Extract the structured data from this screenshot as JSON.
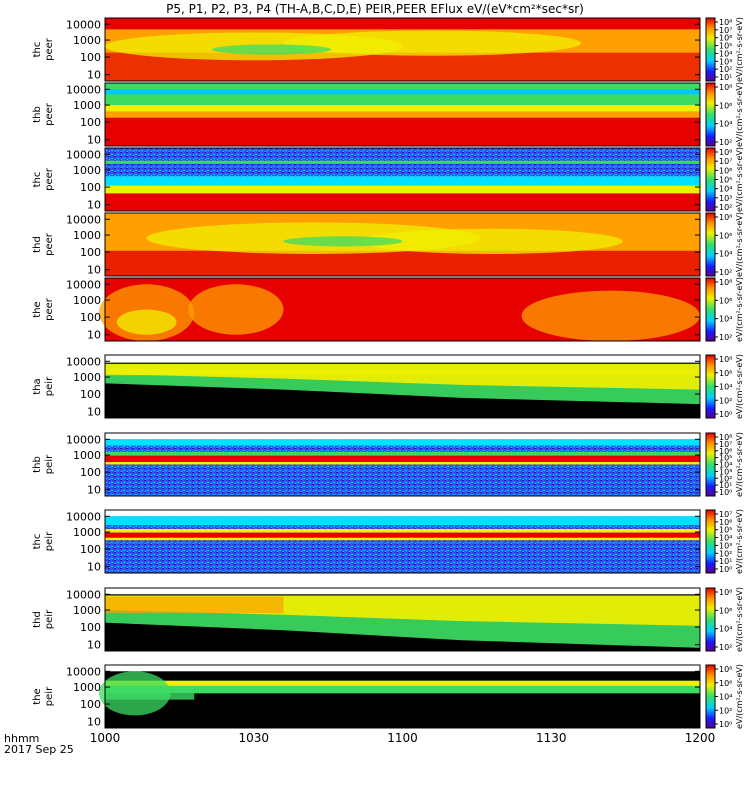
{
  "chart_data": {
    "type": "heatmap",
    "title": "P5, P1, P2, P3, P4 (TH-A,B,C,D,E) PEIR,PEER EFlux eV/(eV*cm²*sec*sr)",
    "x_ticks": [
      "1000",
      "1030",
      "1100",
      "1130",
      "1200"
    ],
    "x_range": [
      "2017-09-25 10:00",
      "2017-09-25 12:00"
    ],
    "x_corner_labels": [
      "hhmm",
      "2017 Sep 25"
    ],
    "y_scale": "log",
    "y_ticks": [
      "10000",
      "1000",
      "100",
      "10"
    ],
    "colorbar_scale": "log",
    "colorbar_label": "eV/(cm²-s-sr-eV)",
    "colors": {
      "black": "#000000",
      "navy": "#1a1aa0",
      "blue": "#2a4cff",
      "cyan": "#00e0ff",
      "green": "#3cdc64",
      "yellow": "#f0f000",
      "orange": "#ffa000",
      "red": "#e60000",
      "background": "#ffffff"
    },
    "panels": [
      {
        "ylabel": [
          "thc",
          "peer"
        ],
        "cb_ticks": [
          "10⁸",
          "10⁷",
          "10⁶",
          "10⁵",
          "10⁴",
          "10³",
          "10²",
          "10¹"
        ],
        "dominant": "orange-red"
      },
      {
        "ylabel": [
          "thb",
          "peer"
        ],
        "cb_ticks": [
          "10⁸",
          "10⁶",
          "10⁴",
          "10²"
        ],
        "dominant": "red below 100 eV, green above"
      },
      {
        "ylabel": [
          "thc",
          "peer"
        ],
        "cb_ticks": [
          "10⁸",
          "10⁷",
          "10⁶",
          "10⁵",
          "10⁴",
          "10³",
          "10²"
        ],
        "dominant": "red below 100 eV, blue above"
      },
      {
        "ylabel": [
          "thd",
          "peer"
        ],
        "cb_ticks": [
          "10⁸",
          "10⁶",
          "10⁴",
          "10²"
        ],
        "dominant": "orange-red"
      },
      {
        "ylabel": [
          "the",
          "peer"
        ],
        "cb_ticks": [
          "10⁸",
          "10⁶",
          "10⁴",
          "10²"
        ],
        "dominant": "red"
      },
      {
        "ylabel": [
          "tha",
          "peir"
        ],
        "cb_ticks": [
          "10⁸",
          "10⁶",
          "10⁴",
          "10²",
          "10⁰"
        ],
        "dominant": "green-yellow above black"
      },
      {
        "ylabel": [
          "thb",
          "peir"
        ],
        "cb_ticks": [
          "10⁸",
          "10⁷",
          "10⁶",
          "10⁵",
          "10⁴",
          "10³",
          "10²",
          "10¹",
          "10⁰"
        ],
        "dominant": "blue with red band near 1000 eV"
      },
      {
        "ylabel": [
          "thc",
          "peir"
        ],
        "cb_ticks": [
          "10⁷",
          "10⁶",
          "10⁵",
          "10⁴",
          "10³",
          "10²",
          "10¹",
          "10⁰"
        ],
        "dominant": "blue with red band near 1000 eV"
      },
      {
        "ylabel": [
          "thd",
          "peir"
        ],
        "cb_ticks": [
          "10⁸",
          "10⁶",
          "10⁴",
          "10²"
        ],
        "dominant": "green-orange above black"
      },
      {
        "ylabel": [
          "the",
          "peir"
        ],
        "cb_ticks": [
          "10⁸",
          "10⁶",
          "10⁴",
          "10²",
          "10⁰"
        ],
        "dominant": "green-yellow above black"
      }
    ]
  }
}
